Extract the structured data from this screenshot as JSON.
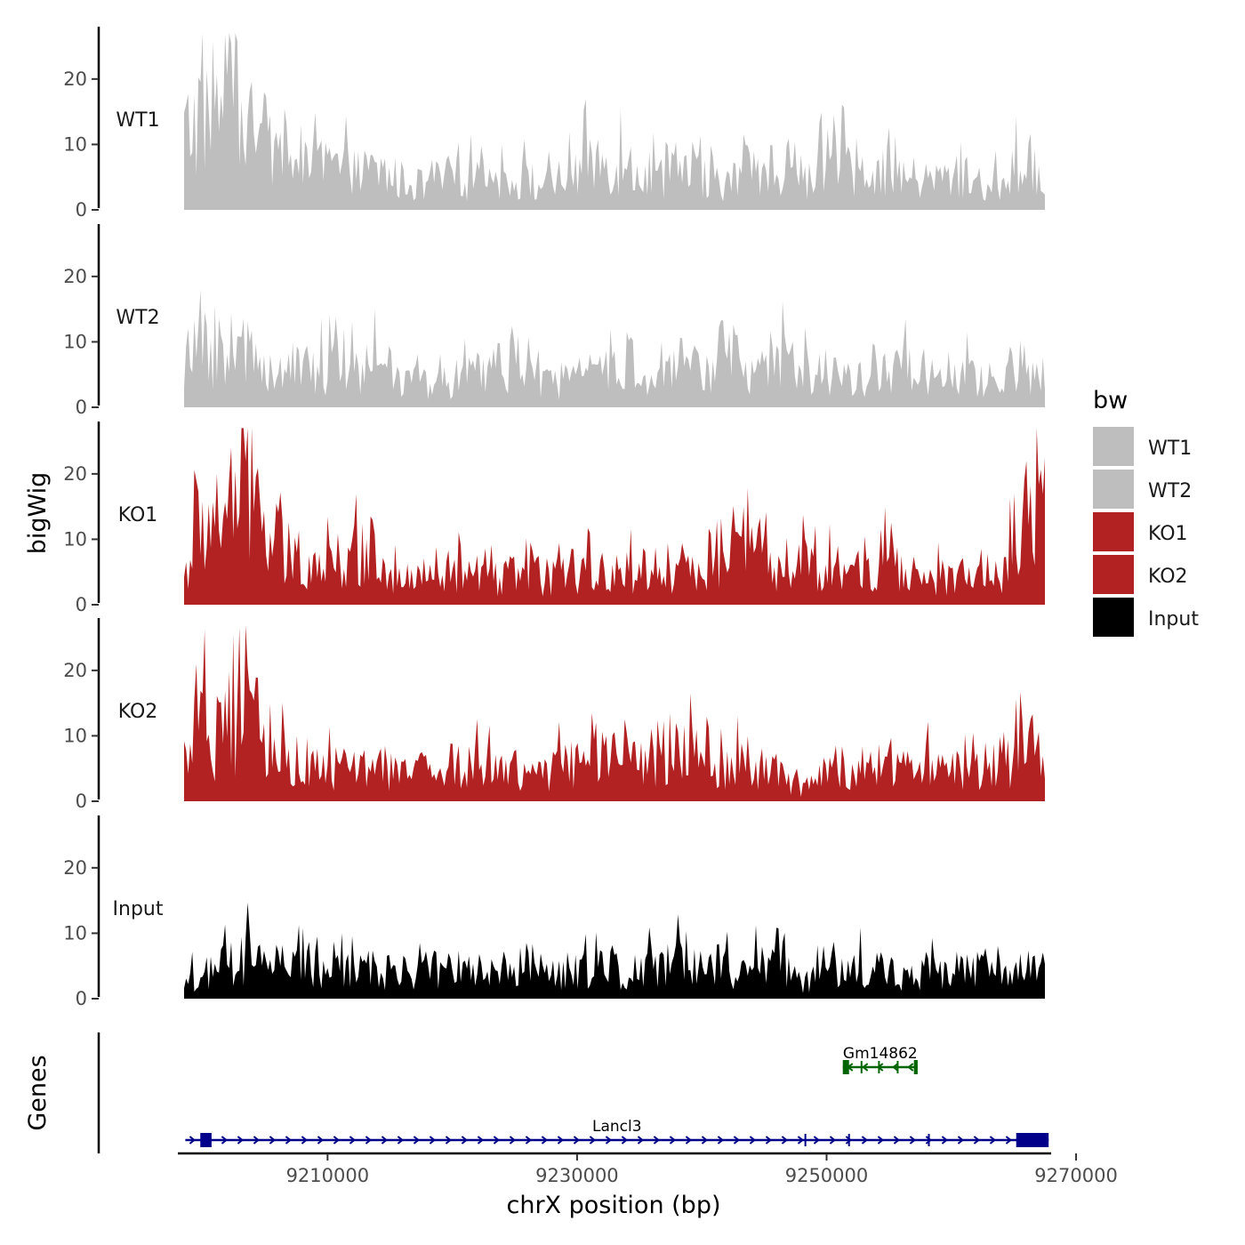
{
  "chart_data": {
    "type": "area",
    "ylabel": "bigWig",
    "genes_label": "Genes",
    "xlabel": "chrX position (bp)",
    "xlim": [
      9198000,
      9268000
    ],
    "x_ticks": [
      9210000,
      9230000,
      9250000,
      9270000
    ],
    "x_tick_labels": [
      "9210000",
      "9230000",
      "9250000",
      "9270000"
    ],
    "ylim": [
      0,
      28
    ],
    "y_ticks": [
      0,
      10,
      20
    ],
    "y_tick_labels": [
      "0",
      "10",
      "20"
    ],
    "series": [
      {
        "name": "WT1",
        "color": "#BEBEBE",
        "x": [
          9198500,
          9200000,
          9202000,
          9204000,
          9206000,
          9208000,
          9210000,
          9212000,
          9214000,
          9216000,
          9218000,
          9220000,
          9222000,
          9224000,
          9226000,
          9228000,
          9230000,
          9232000,
          9234000,
          9236000,
          9238000,
          9240000,
          9242000,
          9244000,
          9246000,
          9248000,
          9250000,
          9252000,
          9254000,
          9256000,
          9258000,
          9260000,
          9262000,
          9264000,
          9266000,
          9267500
        ],
        "values": [
          13,
          18,
          20,
          14,
          10,
          7,
          8,
          6,
          7,
          5,
          4,
          6,
          5,
          6,
          5,
          4,
          7,
          9,
          7,
          6,
          7,
          6,
          5,
          6,
          8,
          6,
          7,
          8,
          7,
          6,
          5,
          6,
          5,
          4,
          9,
          3
        ]
      },
      {
        "name": "WT2",
        "color": "#BEBEBE",
        "x": [
          9198500,
          9200000,
          9202000,
          9204000,
          9206000,
          9208000,
          9210000,
          9212000,
          9214000,
          9216000,
          9218000,
          9220000,
          9222000,
          9224000,
          9226000,
          9228000,
          9230000,
          9232000,
          9234000,
          9236000,
          9238000,
          9240000,
          9242000,
          9244000,
          9246000,
          9248000,
          9250000,
          9252000,
          9254000,
          9256000,
          9258000,
          9260000,
          9262000,
          9264000,
          9266000,
          9267500
        ],
        "values": [
          8,
          10,
          11,
          9,
          7,
          6,
          7,
          6,
          8,
          5,
          4,
          5,
          5,
          9,
          5,
          4,
          5,
          6,
          8,
          5,
          6,
          7,
          10,
          5,
          9,
          6,
          6,
          5,
          5,
          7,
          4,
          6,
          5,
          4,
          8,
          3
        ]
      },
      {
        "name": "KO1",
        "color": "#B22222",
        "x": [
          9198500,
          9200000,
          9202000,
          9204000,
          9206000,
          9208000,
          9210000,
          9212000,
          9214000,
          9216000,
          9218000,
          9220000,
          9222000,
          9224000,
          9226000,
          9228000,
          9230000,
          9232000,
          9234000,
          9236000,
          9238000,
          9240000,
          9242000,
          9244000,
          9246000,
          9248000,
          9250000,
          9252000,
          9254000,
          9256000,
          9258000,
          9260000,
          9262000,
          9264000,
          9266000,
          9267500
        ],
        "values": [
          5,
          14,
          17,
          21,
          9,
          8,
          9,
          8,
          10,
          4,
          5,
          6,
          4,
          5,
          5,
          5,
          6,
          5,
          6,
          7,
          6,
          7,
          10,
          9,
          6,
          7,
          6,
          7,
          8,
          6,
          4,
          5,
          6,
          5,
          14,
          18
        ]
      },
      {
        "name": "KO2",
        "color": "#B22222",
        "x": [
          9198500,
          9200000,
          9202000,
          9204000,
          9206000,
          9208000,
          9210000,
          9212000,
          9214000,
          9216000,
          9218000,
          9220000,
          9222000,
          9224000,
          9226000,
          9228000,
          9230000,
          9232000,
          9234000,
          9236000,
          9238000,
          9240000,
          9242000,
          9244000,
          9246000,
          9248000,
          9250000,
          9252000,
          9254000,
          9256000,
          9258000,
          9260000,
          9262000,
          9264000,
          9266000,
          9267500
        ],
        "values": [
          7,
          12,
          12,
          14,
          9,
          6,
          6,
          5,
          6,
          5,
          5,
          6,
          6,
          5,
          6,
          5,
          7,
          7,
          7,
          8,
          11,
          7,
          6,
          6,
          5,
          2,
          5,
          6,
          5,
          5,
          6,
          5,
          6,
          7,
          8,
          13
        ]
      },
      {
        "name": "Input",
        "color": "#000000",
        "x": [
          9198500,
          9200000,
          9202000,
          9204000,
          9206000,
          9208000,
          9210000,
          9212000,
          9214000,
          9216000,
          9218000,
          9220000,
          9222000,
          9224000,
          9226000,
          9228000,
          9230000,
          9232000,
          9234000,
          9236000,
          9238000,
          9240000,
          9242000,
          9244000,
          9246000,
          9248000,
          9250000,
          9252000,
          9254000,
          9256000,
          9258000,
          9260000,
          9262000,
          9264000,
          9266000,
          9267500
        ],
        "values": [
          3,
          4,
          6,
          7,
          6,
          5,
          5,
          5,
          5,
          4,
          5,
          5,
          5,
          5,
          6,
          5,
          5,
          6,
          5,
          6,
          6,
          5,
          5,
          5,
          6,
          3,
          5,
          5,
          5,
          4,
          5,
          5,
          5,
          4,
          5,
          5
        ]
      }
    ],
    "legend": {
      "title": "bw",
      "position": "right",
      "entries": [
        {
          "label": "WT1",
          "color": "#BEBEBE"
        },
        {
          "label": "WT2",
          "color": "#BEBEBE"
        },
        {
          "label": "KO1",
          "color": "#B22222"
        },
        {
          "label": "KO2",
          "color": "#B22222"
        },
        {
          "label": "Input",
          "color": "#000000"
        }
      ]
    },
    "genes": [
      {
        "name": "Gm14862",
        "start": 9251300,
        "end": 9257300,
        "strand": "-",
        "color": "#006400",
        "lane": 1,
        "exons": [
          [
            9251300,
            9251800
          ],
          [
            9257000,
            9257300
          ]
        ],
        "marks": [
          9252800,
          9254200,
          9255700
        ]
      },
      {
        "name": "Lancl3",
        "start": 9198600,
        "end": 9267800,
        "strand": "+",
        "color": "#00008B",
        "lane": 0,
        "exons": [
          [
            9199800,
            9200700
          ],
          [
            9265200,
            9267800
          ]
        ],
        "marks": [
          9248300,
          9251800,
          9258200
        ]
      }
    ]
  }
}
